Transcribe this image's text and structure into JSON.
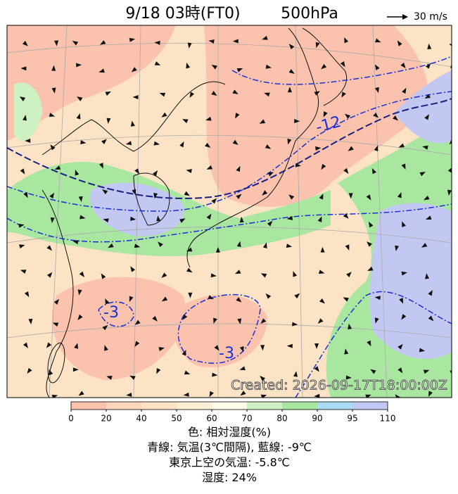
{
  "header": {
    "title": "9/18 03時(FT0)",
    "level": "500hPa",
    "wind_scale": "30 m/s"
  },
  "map": {
    "contour_labels": [
      "-12",
      "-3",
      "-3"
    ],
    "created": "Created: 2026-09-17T18:00:00Z"
  },
  "colorbar": {
    "ticks": [
      0,
      20,
      40,
      50,
      60,
      70,
      80,
      90,
      95,
      110
    ],
    "colors": [
      "#fbc2ae",
      "#fcd6bc",
      "#fde3c6",
      "#fdeed6",
      "#fdfbe6",
      "#cdf1c3",
      "#a9e6a0",
      "#a9dcf2",
      "#c3c8f2"
    ]
  },
  "caption": [
    "色: 相対湿度(%)",
    "青線: 気温(3℃間隔), 藍線: -9℃",
    "東京上空の気温: -5.8℃",
    "湿度: 24%"
  ]
}
